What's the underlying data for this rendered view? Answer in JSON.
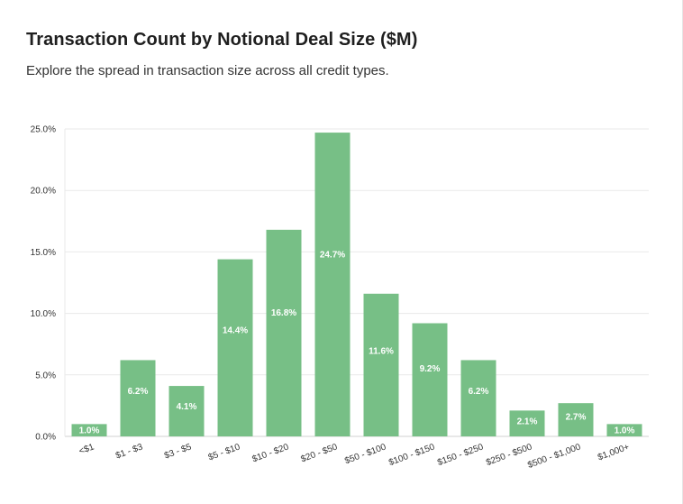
{
  "header": {
    "title": "Transaction Count by Notional Deal Size ($M)",
    "subtitle": "Explore the spread in transaction size across all credit types."
  },
  "colors": {
    "bar": "#77bf86",
    "grid": "#e9e9e9",
    "axis": "#d0d0d0"
  },
  "chart_data": {
    "type": "bar",
    "title": "Transaction Count by Notional Deal Size ($M)",
    "subtitle": "Explore the spread in transaction size across all credit types.",
    "xlabel": "",
    "ylabel": "",
    "ylim": [
      0,
      25
    ],
    "yticks": [
      0,
      5,
      10,
      15,
      20,
      25
    ],
    "ytick_labels": [
      "0.0%",
      "5.0%",
      "10.0%",
      "15.0%",
      "20.0%",
      "25.0%"
    ],
    "grid": true,
    "categories": [
      "<$1",
      "$1 - $3",
      "$3 - $5",
      "$5 - $10",
      "$10 - $20",
      "$20 - $50",
      "$50 - $100",
      "$100 - $150",
      "$150 - $250",
      "$250 - $500",
      "$500 - $1,000",
      "$1,000+"
    ],
    "values": [
      1.0,
      6.2,
      4.1,
      14.4,
      16.8,
      24.7,
      11.6,
      9.2,
      6.2,
      2.1,
      2.7,
      1.0
    ],
    "data_labels": [
      "1.0%",
      "6.2%",
      "4.1%",
      "14.4%",
      "16.8%",
      "24.7%",
      "11.6%",
      "9.2%",
      "6.2%",
      "2.1%",
      "2.7%",
      "1.0%"
    ]
  }
}
